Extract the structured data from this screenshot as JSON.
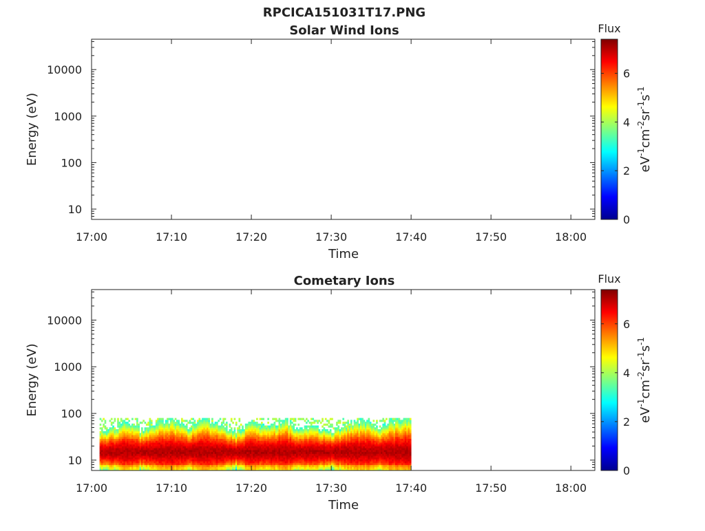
{
  "figure": {
    "title": "RPCICA151031T17.PNG"
  },
  "colors": {
    "colormap": [
      "#00008f",
      "#0000ff",
      "#0080ff",
      "#00ffff",
      "#80ff80",
      "#ffff00",
      "#ff8000",
      "#ff0000",
      "#800000"
    ],
    "axis": "#222222",
    "background": "#ffffff"
  },
  "chart_data": [
    {
      "type": "heatmap",
      "title": "Solar Wind Ions",
      "xlabel": "Time",
      "ylabel": "Energy (eV)",
      "y_scale": "log",
      "ylim": [
        6,
        45000
      ],
      "y_ticks": [
        10,
        100,
        1000,
        10000
      ],
      "y_tick_labels": [
        "10",
        "100",
        "1000",
        "10000"
      ],
      "xlim": [
        "17:00",
        "18:03"
      ],
      "x_ticks": [
        "17:00",
        "17:10",
        "17:20",
        "17:30",
        "17:40",
        "17:50",
        "18:00"
      ],
      "colorbar": {
        "title": "Flux",
        "label": "eV-1cm-2sr-1s-1",
        "range": [
          0,
          7.4
        ],
        "ticks": [
          0,
          2,
          4,
          6
        ],
        "tick_labels": [
          "0",
          "2",
          "4",
          "6"
        ]
      },
      "data_present": false
    },
    {
      "type": "heatmap",
      "title": "Cometary Ions",
      "xlabel": "Time",
      "ylabel": "Energy (eV)",
      "y_scale": "log",
      "ylim": [
        6,
        45000
      ],
      "y_ticks": [
        10,
        100,
        1000,
        10000
      ],
      "y_tick_labels": [
        "10",
        "100",
        "1000",
        "10000"
      ],
      "xlim": [
        "17:00",
        "18:03"
      ],
      "x_ticks": [
        "17:00",
        "17:10",
        "17:20",
        "17:30",
        "17:40",
        "17:50",
        "18:00"
      ],
      "colorbar": {
        "title": "Flux",
        "label": "eV-1cm-2sr-1s-1",
        "range": [
          0,
          7.4
        ],
        "ticks": [
          0,
          2,
          4,
          6
        ],
        "tick_labels": [
          "0",
          "2",
          "4",
          "6"
        ]
      },
      "data_present": true,
      "data_time_range": [
        "17:01",
        "17:40"
      ],
      "energy_range_eV": [
        6,
        80
      ],
      "peak_energy_eV": 15,
      "peak_flux": 7.2,
      "flux_profile": [
        {
          "t": "17:01",
          "upper_eV": 40
        },
        {
          "t": "17:03",
          "upper_eV": 50
        },
        {
          "t": "17:04",
          "upper_eV": 70
        },
        {
          "t": "17:06",
          "upper_eV": 45
        },
        {
          "t": "17:08",
          "upper_eV": 60
        },
        {
          "t": "17:10",
          "upper_eV": 75
        },
        {
          "t": "17:12",
          "upper_eV": 50
        },
        {
          "t": "17:14",
          "upper_eV": 80
        },
        {
          "t": "17:16",
          "upper_eV": 55
        },
        {
          "t": "17:18",
          "upper_eV": 40
        },
        {
          "t": "17:20",
          "upper_eV": 65
        },
        {
          "t": "17:22",
          "upper_eV": 50
        },
        {
          "t": "17:24",
          "upper_eV": 75
        },
        {
          "t": "17:26",
          "upper_eV": 45
        },
        {
          "t": "17:28",
          "upper_eV": 55
        },
        {
          "t": "17:30",
          "upper_eV": 40
        },
        {
          "t": "17:32",
          "upper_eV": 60
        },
        {
          "t": "17:34",
          "upper_eV": 70
        },
        {
          "t": "17:36",
          "upper_eV": 50
        },
        {
          "t": "17:38",
          "upper_eV": 75
        },
        {
          "t": "17:40",
          "upper_eV": 80
        }
      ]
    }
  ]
}
